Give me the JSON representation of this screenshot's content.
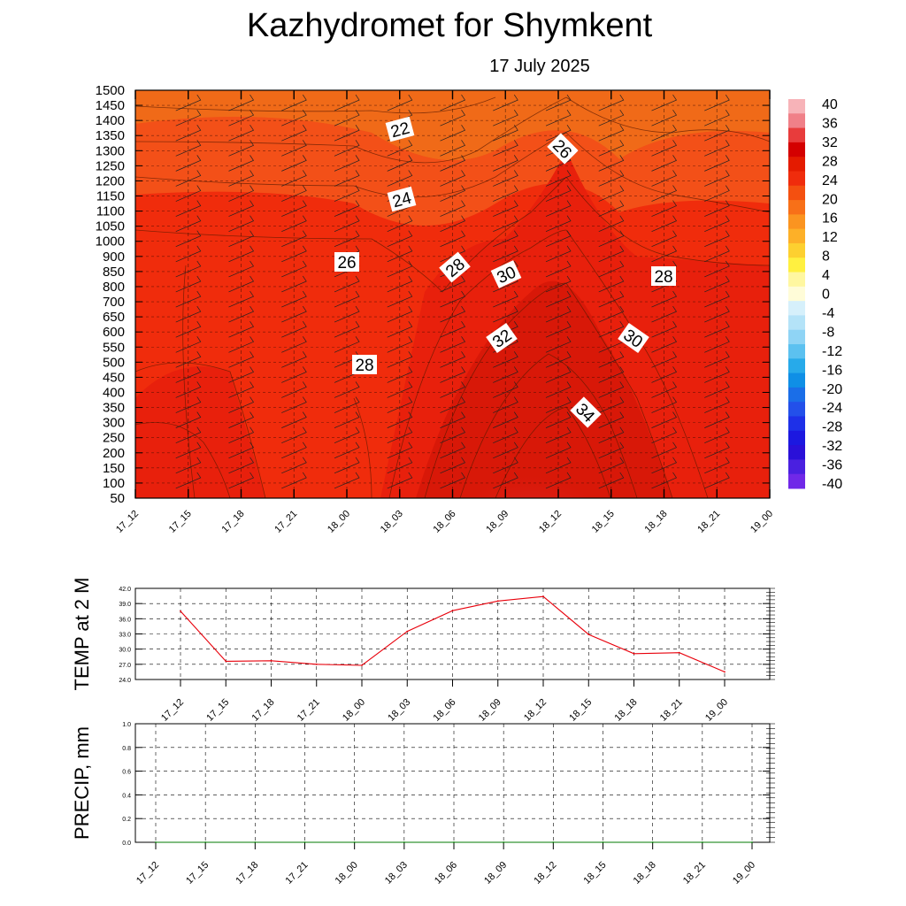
{
  "header": {
    "title": "Kazhydromet  for Shymkent",
    "date": "17 July 2025"
  },
  "chart_data": [
    {
      "type": "heatmap",
      "name": "vertical-cross-section",
      "x_ticks": [
        "17_12",
        "17_15",
        "17_18",
        "17_21",
        "18_00",
        "18_03",
        "18_06",
        "18_09",
        "18_12",
        "18_15",
        "18_18",
        "18_21",
        "19_00"
      ],
      "y_ticks": [
        "1500",
        "1450",
        "1400",
        "1350",
        "1300",
        "1250",
        "1200",
        "1150",
        "1100",
        "1050",
        "1000",
        "900",
        "850",
        "800",
        "700",
        "650",
        "600",
        "550",
        "500",
        "450",
        "400",
        "350",
        "300",
        "250",
        "200",
        "150",
        "100",
        "50"
      ],
      "colorbar_labels": [
        "40",
        "36",
        "32",
        "28",
        "24",
        "20",
        "16",
        "12",
        "8",
        "4",
        "0",
        "-4",
        "-8",
        "-12",
        "-16",
        "-20",
        "-24",
        "-28",
        "-32",
        "-36",
        "-40"
      ],
      "contour_labels": [
        "22",
        "26",
        "24",
        "26",
        "28",
        "30",
        "28",
        "32",
        "30",
        "28",
        "34"
      ]
    },
    {
      "type": "line",
      "name": "temperature-2m",
      "ylabel": "TEMP at 2 M",
      "categories": [
        "17_12",
        "17_15",
        "17_18",
        "17_21",
        "18_00",
        "18_03",
        "18_06",
        "18_09",
        "18_12",
        "18_15",
        "18_18",
        "18_21",
        "19_00"
      ],
      "values": [
        37.5,
        27.6,
        27.7,
        27.0,
        26.8,
        33.5,
        37.6,
        39.5,
        40.4,
        32.9,
        29.1,
        29.3,
        25.5
      ],
      "ylim": [
        24.0,
        42.0
      ],
      "y_ticks": [
        "42.0",
        "39.0",
        "36.0",
        "33.0",
        "30.0",
        "27.0",
        "24.0"
      ],
      "color": "#e8000b"
    },
    {
      "type": "line",
      "name": "precipitation",
      "ylabel": "PRECIP, mm",
      "categories": [
        "17_12",
        "17_15",
        "17_18",
        "17_21",
        "18_00",
        "18_03",
        "18_06",
        "18_09",
        "18_12",
        "18_15",
        "18_18",
        "18_21",
        "19_00"
      ],
      "values": [
        0,
        0,
        0,
        0,
        0,
        0,
        0,
        0,
        0,
        0,
        0,
        0,
        0
      ],
      "ylim": [
        0.0,
        1.0
      ],
      "y_ticks": [
        "1.0",
        "0.8",
        "0.6",
        "0.4",
        "0.2",
        "0.0"
      ],
      "color": "#007a00"
    }
  ]
}
